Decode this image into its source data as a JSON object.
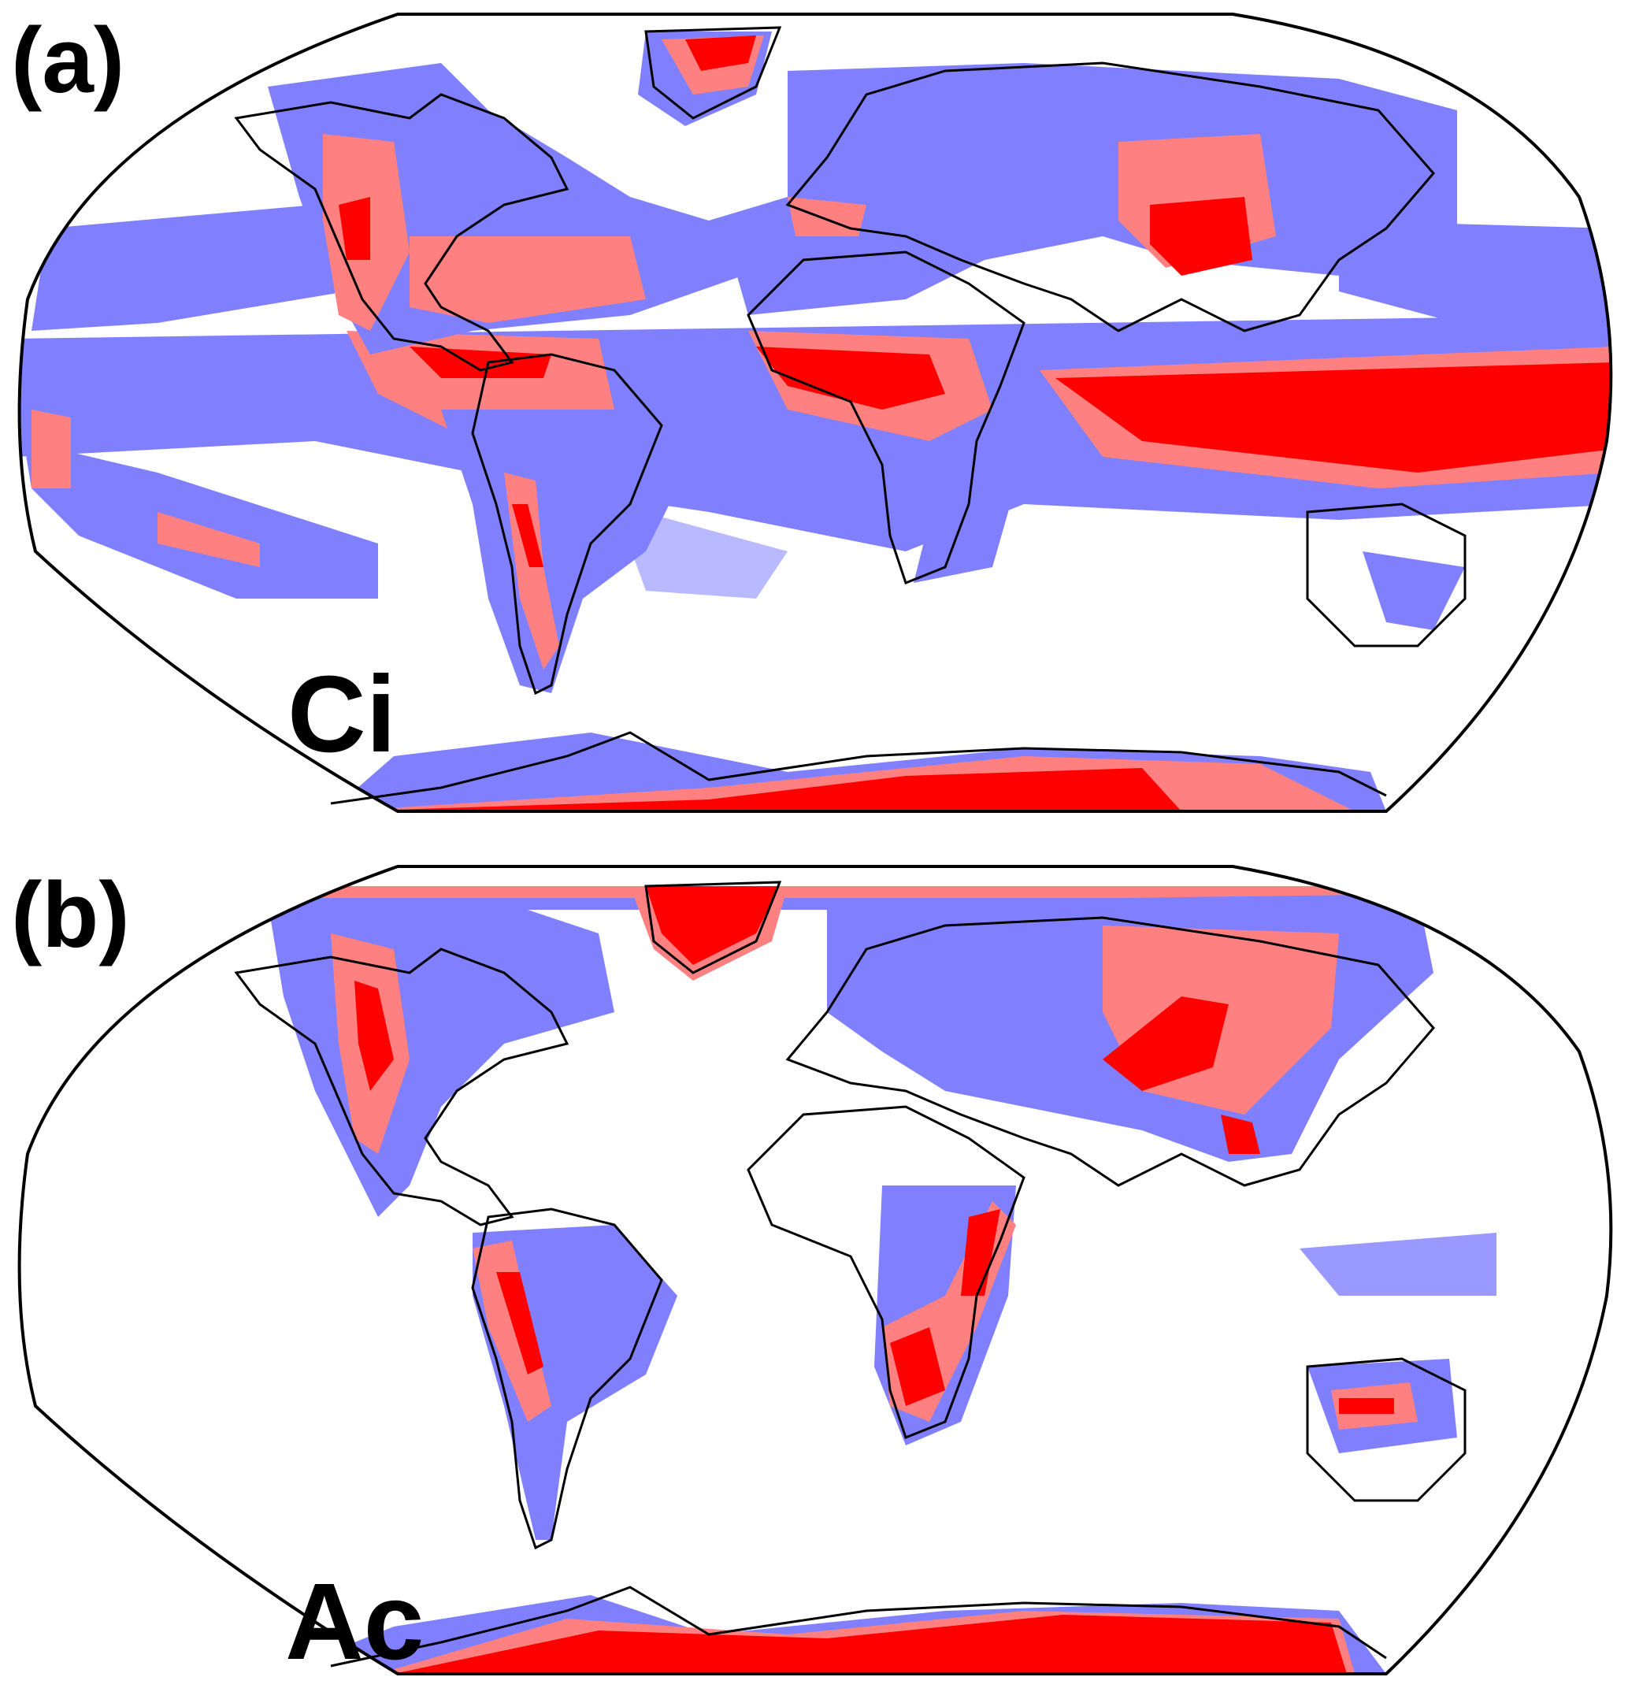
{
  "panels": [
    {
      "letter": "(a)",
      "cloud_type": "Ci"
    },
    {
      "letter": "(b)",
      "cloud_type": "Ac"
    }
  ],
  "colors": {
    "low": "#8080ff",
    "mid": "#ff8080",
    "high": "#ff0000",
    "coastline": "#000000",
    "frame": "#000000",
    "background": "#ffffff"
  },
  "projection": "Robinson"
}
